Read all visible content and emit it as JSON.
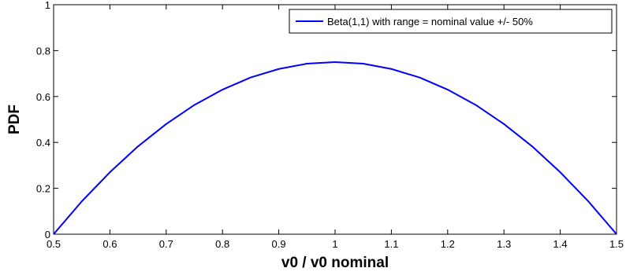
{
  "chart_data": {
    "type": "line",
    "title": "",
    "xlabel": "v0 / v0 nominal",
    "ylabel": "PDF",
    "xlim": [
      0.5,
      1.5
    ],
    "ylim": [
      0,
      1
    ],
    "xticks": [
      0.5,
      0.6,
      0.7,
      0.8,
      0.9,
      1,
      1.1,
      1.2,
      1.3,
      1.4,
      1.5
    ],
    "yticks": [
      0,
      0.2,
      0.4,
      0.6,
      0.8,
      1
    ],
    "grid": false,
    "legend_position": "top-right",
    "series": [
      {
        "name": "Beta(1,1) with range = nominal value +/- 50%",
        "color": "#0000ff",
        "x": [
          0.5,
          0.55,
          0.6,
          0.65,
          0.7,
          0.75,
          0.8,
          0.85,
          0.9,
          0.95,
          1.0,
          1.05,
          1.1,
          1.15,
          1.2,
          1.25,
          1.3,
          1.35,
          1.4,
          1.45,
          1.5
        ],
        "y": [
          0,
          0.143,
          0.27,
          0.383,
          0.48,
          0.563,
          0.63,
          0.683,
          0.72,
          0.743,
          0.75,
          0.743,
          0.72,
          0.683,
          0.63,
          0.563,
          0.48,
          0.383,
          0.27,
          0.143,
          0
        ]
      }
    ]
  }
}
